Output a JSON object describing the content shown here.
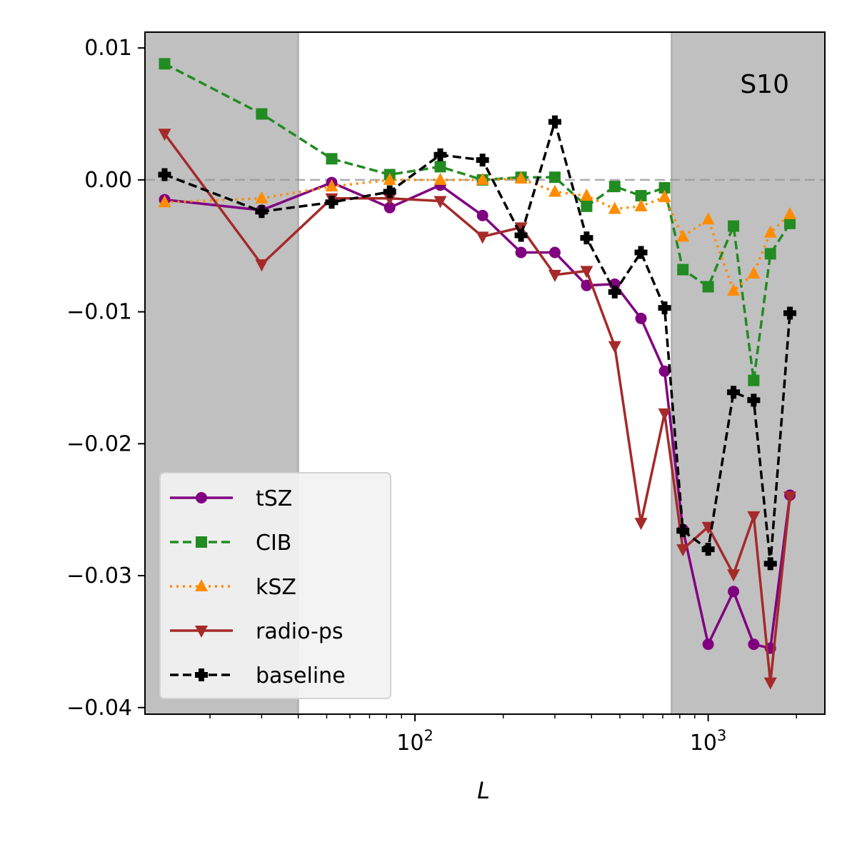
{
  "chart_data": {
    "type": "line",
    "title": "",
    "xlabel": "L",
    "ylabel": "",
    "xscale": "log",
    "xlim": [
      12,
      2500
    ],
    "ylim": [
      -0.0405,
      0.0112
    ],
    "x_ticks": [
      {
        "value": 100,
        "base": "10",
        "exp": "2"
      },
      {
        "value": 1000,
        "base": "10",
        "exp": "3"
      }
    ],
    "y_ticks": [
      {
        "value": 0.01,
        "label": "0.01"
      },
      {
        "value": 0.0,
        "label": "0.00"
      },
      {
        "value": -0.01,
        "label": "−0.01"
      },
      {
        "value": -0.02,
        "label": "−0.02"
      },
      {
        "value": -0.03,
        "label": "−0.03"
      },
      {
        "value": -0.04,
        "label": "−0.04"
      }
    ],
    "zero_line": {
      "y": 0,
      "color": "#999999",
      "style": "dashed"
    },
    "shaded_regions": [
      {
        "x_start": 12,
        "x_end": 40,
        "color": "#c0c0c0"
      },
      {
        "x_start": 750,
        "x_end": 2500,
        "color": "#c0c0c0"
      }
    ],
    "annotation": "S10",
    "legend_position": "lower-left",
    "x": [
      14,
      30,
      52,
      82,
      122,
      170,
      230,
      300,
      385,
      480,
      590,
      710,
      820,
      1000,
      1220,
      1430,
      1630,
      1900
    ],
    "series": [
      {
        "name": "tSZ",
        "color": "#800080",
        "linestyle": "solid",
        "marker": "circle",
        "values": [
          -0.0015,
          -0.0023,
          -0.0002,
          -0.0021,
          -0.0004,
          -0.0027,
          -0.0055,
          -0.0055,
          -0.008,
          -0.0079,
          -0.0105,
          -0.0145,
          -0.0265,
          -0.0352,
          -0.0312,
          -0.0352,
          -0.0355,
          -0.0239
        ]
      },
      {
        "name": "CIB",
        "color": "#228B22",
        "linestyle": "dashed",
        "marker": "square",
        "values": [
          0.0088,
          0.005,
          0.0016,
          0.0004,
          0.001,
          0.0,
          0.0002,
          0.0002,
          -0.002,
          -0.0005,
          -0.0012,
          -0.0006,
          -0.0068,
          -0.0081,
          -0.0035,
          -0.0152,
          -0.0056,
          -0.0033
        ]
      },
      {
        "name": "kSZ",
        "color": "#FF8C00",
        "linestyle": "dotted",
        "marker": "triangle-up",
        "values": [
          -0.0017,
          -0.0014,
          -0.0005,
          0.0,
          0.0,
          0.0,
          0.0001,
          -0.0009,
          -0.0012,
          -0.0022,
          -0.002,
          -0.0013,
          -0.0043,
          -0.003,
          -0.0084,
          -0.0071,
          -0.004,
          -0.0026
        ]
      },
      {
        "name": "radio-ps",
        "color": "#A52A2A",
        "linestyle": "solid",
        "marker": "triangle-down",
        "values": [
          0.0035,
          -0.0064,
          -0.0014,
          -0.0014,
          -0.0016,
          -0.0043,
          -0.0036,
          -0.0072,
          -0.0069,
          -0.0126,
          -0.026,
          -0.0177,
          -0.028,
          -0.0263,
          -0.0299,
          -0.0255,
          -0.0381,
          -0.024
        ]
      },
      {
        "name": "baseline",
        "color": "#000000",
        "linestyle": "dashed",
        "marker": "plus",
        "values": [
          0.0004,
          -0.0024,
          -0.0017,
          -0.0009,
          0.0019,
          0.0015,
          -0.0042,
          0.0044,
          -0.0044,
          -0.0085,
          -0.0055,
          -0.0097,
          -0.0266,
          -0.028,
          -0.0161,
          -0.0167,
          -0.0291,
          -0.0101
        ]
      }
    ]
  }
}
